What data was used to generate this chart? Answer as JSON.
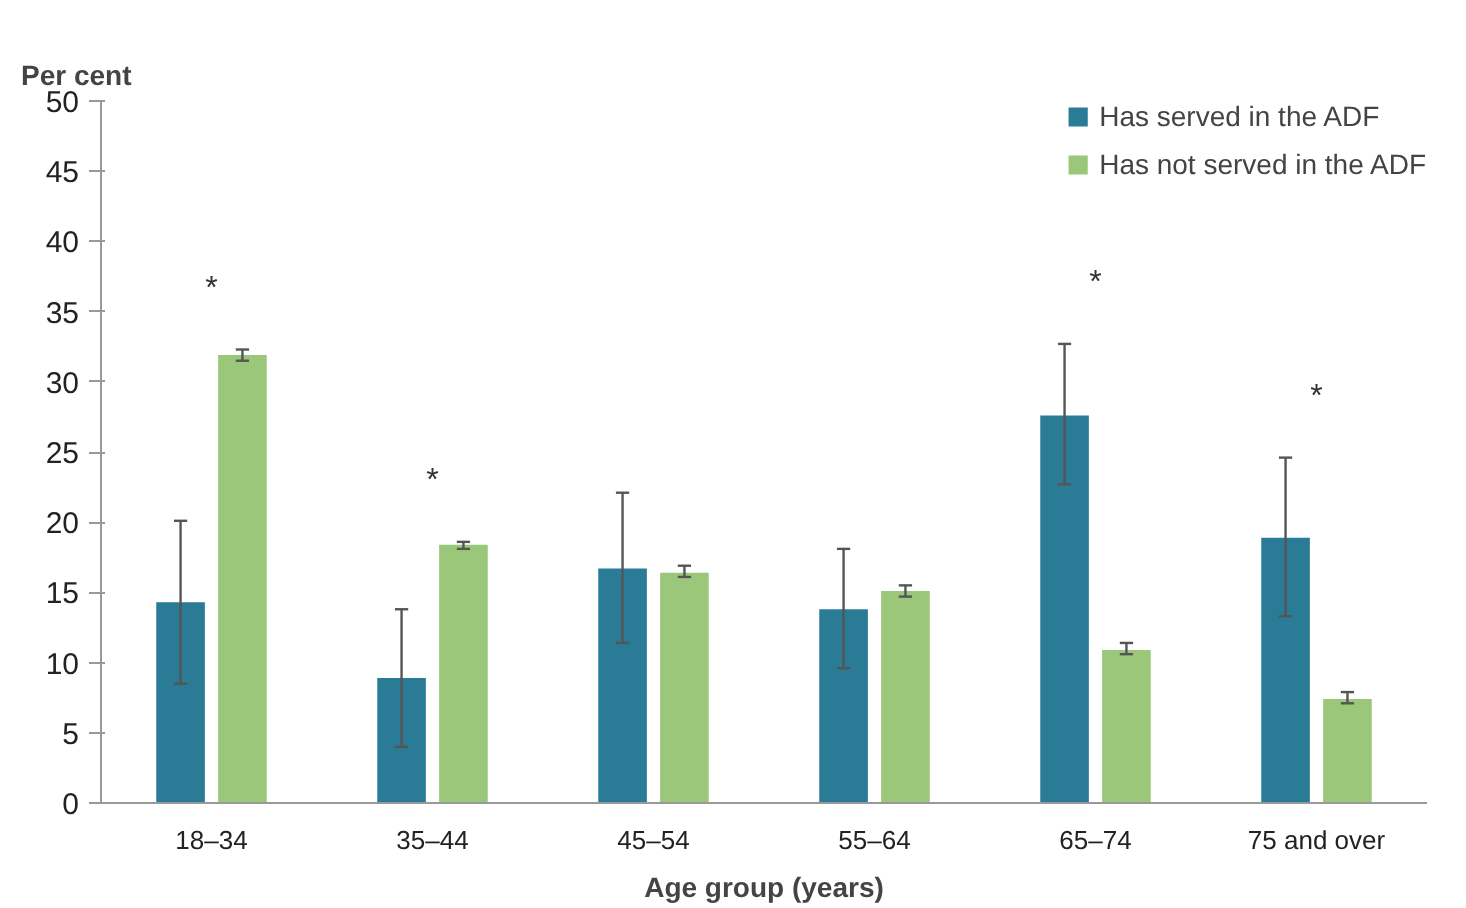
{
  "chart_data": {
    "type": "bar",
    "ylabel": "Per cent",
    "xlabel": "Age group (years)",
    "categories": [
      "18–34",
      "35–44",
      "45–54",
      "55–64",
      "65–74",
      "75 and over"
    ],
    "series": [
      {
        "name": "Has served in the ADF",
        "color": "#2a7b96",
        "values": [
          14.3,
          8.9,
          16.7,
          13.8,
          27.6,
          18.9
        ],
        "errors": [
          [
            8.5,
            20.1
          ],
          [
            4.0,
            13.8
          ],
          [
            11.4,
            22.1
          ],
          [
            9.6,
            18.1
          ],
          [
            22.7,
            32.7
          ],
          [
            13.3,
            24.6
          ]
        ]
      },
      {
        "name": "Has not served in the ADF",
        "color": "#9bc77a",
        "values": [
          31.9,
          18.4,
          16.4,
          15.1,
          10.9,
          7.4
        ],
        "errors": [
          [
            31.5,
            32.3
          ],
          [
            18.1,
            18.6
          ],
          [
            16.1,
            16.9
          ],
          [
            14.7,
            15.5
          ],
          [
            10.6,
            11.4
          ],
          [
            7.1,
            7.9
          ]
        ]
      }
    ],
    "annotations": [
      "*",
      "*",
      "*",
      "*"
    ],
    "ylim": [
      0,
      50
    ],
    "yticks": [
      0,
      5,
      10,
      15,
      20,
      25,
      30,
      35,
      40,
      45,
      50
    ],
    "grid": false,
    "legend": "top right"
  }
}
